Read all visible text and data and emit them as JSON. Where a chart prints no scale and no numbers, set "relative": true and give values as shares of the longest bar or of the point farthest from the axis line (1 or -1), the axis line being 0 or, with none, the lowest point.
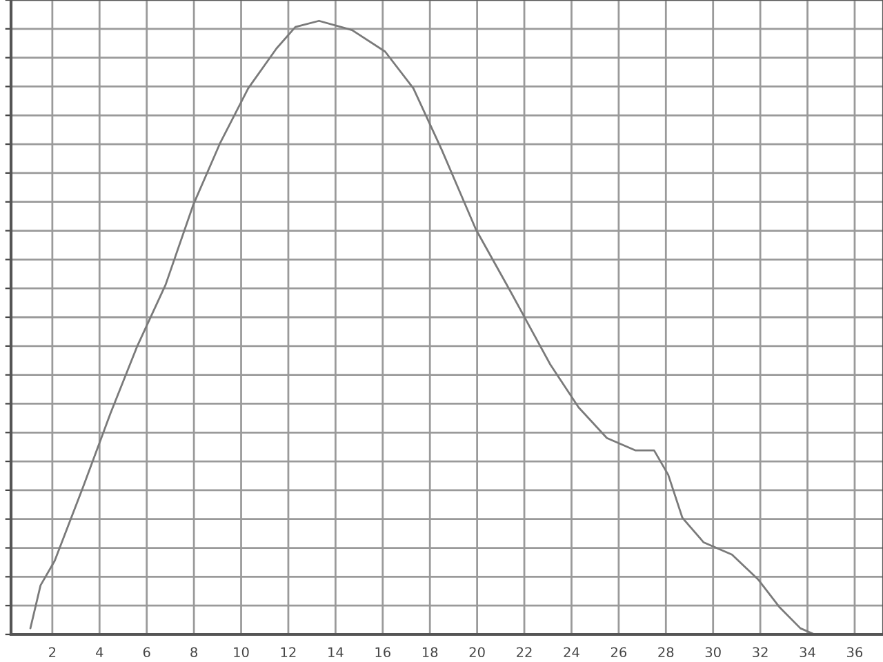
{
  "chart_data": {
    "type": "line",
    "relative": true,
    "x": [
      1.07,
      1.5,
      2.1,
      3.3,
      4.46,
      5.6,
      6.8,
      7.97,
      9.1,
      10.3,
      11.5,
      12.3,
      13.3,
      14.7,
      16.1,
      17.3,
      18.5,
      19.95,
      21.4,
      23.1,
      24.3,
      25.5,
      26.7,
      27.5,
      28.1,
      28.7,
      29.6,
      30.8,
      31.9,
      32.8,
      33.7,
      34.3
    ],
    "series": [
      {
        "color": "#7a7a7a",
        "values": [
          0.01,
          0.08,
          0.12,
          0.24,
          0.36,
          0.47,
          0.57,
          0.7,
          0.8,
          0.89,
          0.955,
          0.99,
          1.0,
          0.985,
          0.95,
          0.89,
          0.79,
          0.66,
          0.56,
          0.44,
          0.37,
          0.32,
          0.3,
          0.3,
          0.26,
          0.19,
          0.15,
          0.13,
          0.09,
          0.045,
          0.01,
          0.0
        ]
      }
    ],
    "xlim": [
      0.25,
      37.2
    ],
    "xticks": [
      2,
      4,
      6,
      8,
      10,
      12,
      14,
      16,
      18,
      20,
      22,
      24,
      26,
      28,
      30,
      32,
      34,
      36
    ],
    "grid": true,
    "tick_labels": "x"
  }
}
